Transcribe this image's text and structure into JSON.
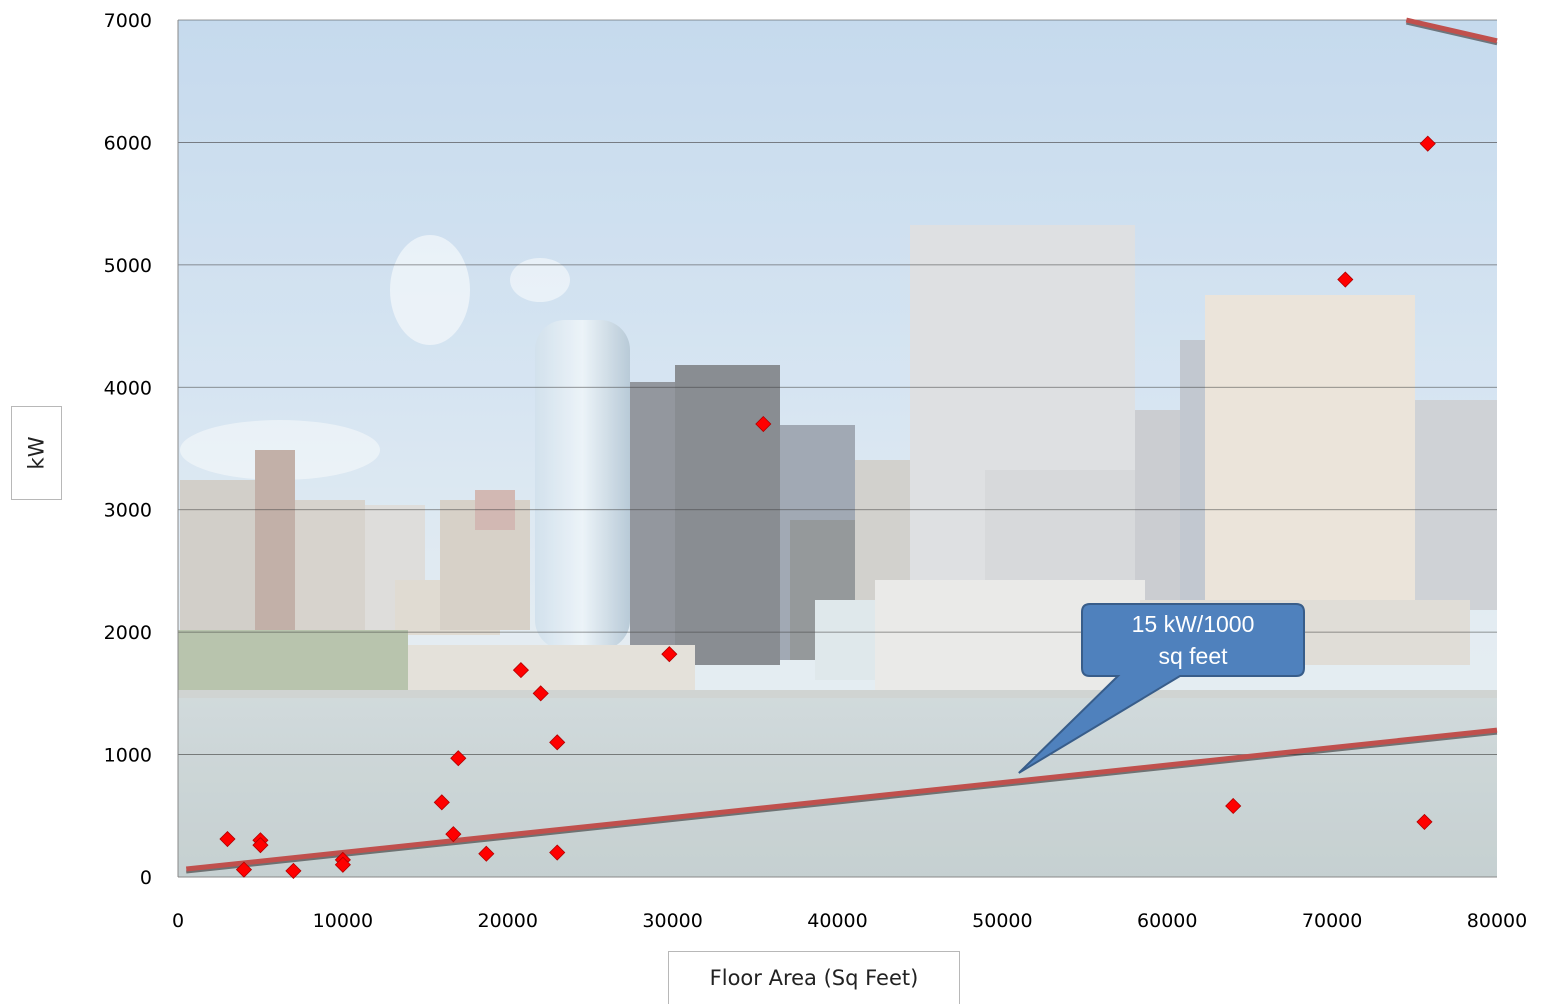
{
  "chart_data": {
    "type": "scatter",
    "title": "",
    "xlabel": "Floor Area (Sq Feet)",
    "ylabel": "kW",
    "xlim": [
      0,
      80000
    ],
    "ylim": [
      0,
      7000
    ],
    "x_ticks": [
      "0",
      "10000",
      "20000",
      "30000",
      "40000",
      "50000",
      "60000",
      "70000",
      "80000"
    ],
    "y_ticks": [
      "0",
      "1000",
      "2000",
      "3000",
      "4000",
      "5000",
      "6000",
      "7000"
    ],
    "grid": "horizontal",
    "background": "photo of city skyline along waterfront",
    "series": [
      {
        "name": "",
        "marker": "diamond",
        "color": "#ff0000",
        "points": [
          {
            "x": 3000,
            "y": 310
          },
          {
            "x": 4000,
            "y": 60
          },
          {
            "x": 5000,
            "y": 300
          },
          {
            "x": 5000,
            "y": 260
          },
          {
            "x": 7000,
            "y": 50
          },
          {
            "x": 10000,
            "y": 140
          },
          {
            "x": 10000,
            "y": 100
          },
          {
            "x": 16000,
            "y": 610
          },
          {
            "x": 16700,
            "y": 350
          },
          {
            "x": 17000,
            "y": 970
          },
          {
            "x": 18700,
            "y": 190
          },
          {
            "x": 20800,
            "y": 1690
          },
          {
            "x": 22000,
            "y": 1500
          },
          {
            "x": 23000,
            "y": 1100
          },
          {
            "x": 23000,
            "y": 200
          },
          {
            "x": 29800,
            "y": 1820
          },
          {
            "x": 35500,
            "y": 3700
          },
          {
            "x": 64000,
            "y": 580
          },
          {
            "x": 70800,
            "y": 4880
          },
          {
            "x": 75600,
            "y": 450
          },
          {
            "x": 75800,
            "y": 5990
          }
        ]
      }
    ],
    "reference_line": {
      "color": "#c0504d",
      "points": [
        {
          "x": 500,
          "y": 65
        },
        {
          "x": 80000,
          "y": 1200
        }
      ]
    },
    "reference_line_2": {
      "color": "#c0504d",
      "points": [
        {
          "x": 74500,
          "y": 7000
        },
        {
          "x": 80000,
          "y": 6830
        }
      ]
    },
    "callout": {
      "line1": "15 kW/1000",
      "line2": "sq feet",
      "fill": "#4f81bd",
      "pointer_target": {
        "x": 51000,
        "y": 850
      }
    }
  }
}
